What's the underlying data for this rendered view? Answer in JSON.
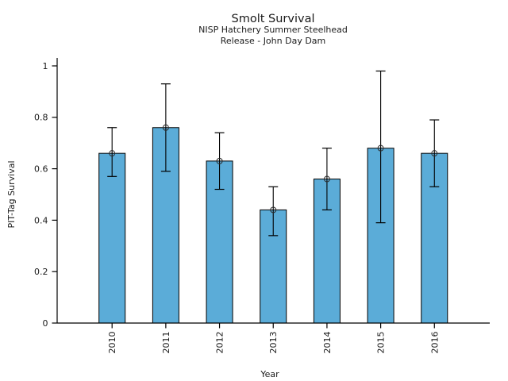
{
  "chart_data": {
    "type": "bar",
    "title": "Smolt Survival",
    "subtitle": [
      "NISP Hatchery Summer Steelhead",
      "Release - John Day Dam"
    ],
    "xlabel": "Year",
    "ylabel": "PIT-Tag Survival",
    "categories": [
      "2010",
      "2011",
      "2012",
      "2013",
      "2014",
      "2015",
      "2016"
    ],
    "values": [
      0.66,
      0.76,
      0.63,
      0.44,
      0.56,
      0.68,
      0.66
    ],
    "error_low": [
      0.57,
      0.59,
      0.52,
      0.34,
      0.44,
      0.39,
      0.53
    ],
    "error_high": [
      0.76,
      0.93,
      0.74,
      0.53,
      0.68,
      0.98,
      0.79
    ],
    "ylim": [
      0,
      1
    ],
    "yticks": [
      0,
      0.2,
      0.4,
      0.6,
      0.8,
      1
    ],
    "ytick_labels": [
      "0",
      "0.2",
      "0.4",
      "0.6",
      "0.8",
      "1"
    ],
    "marker": "open-circle",
    "grid": false,
    "legend": "none",
    "colors": {
      "bar_fill": "#5BACD8",
      "bar_edge": "#000000",
      "error": "#000000",
      "marker_edge": "#2b2b2b",
      "axis": "#000000",
      "text": "#1a1a1a"
    }
  }
}
